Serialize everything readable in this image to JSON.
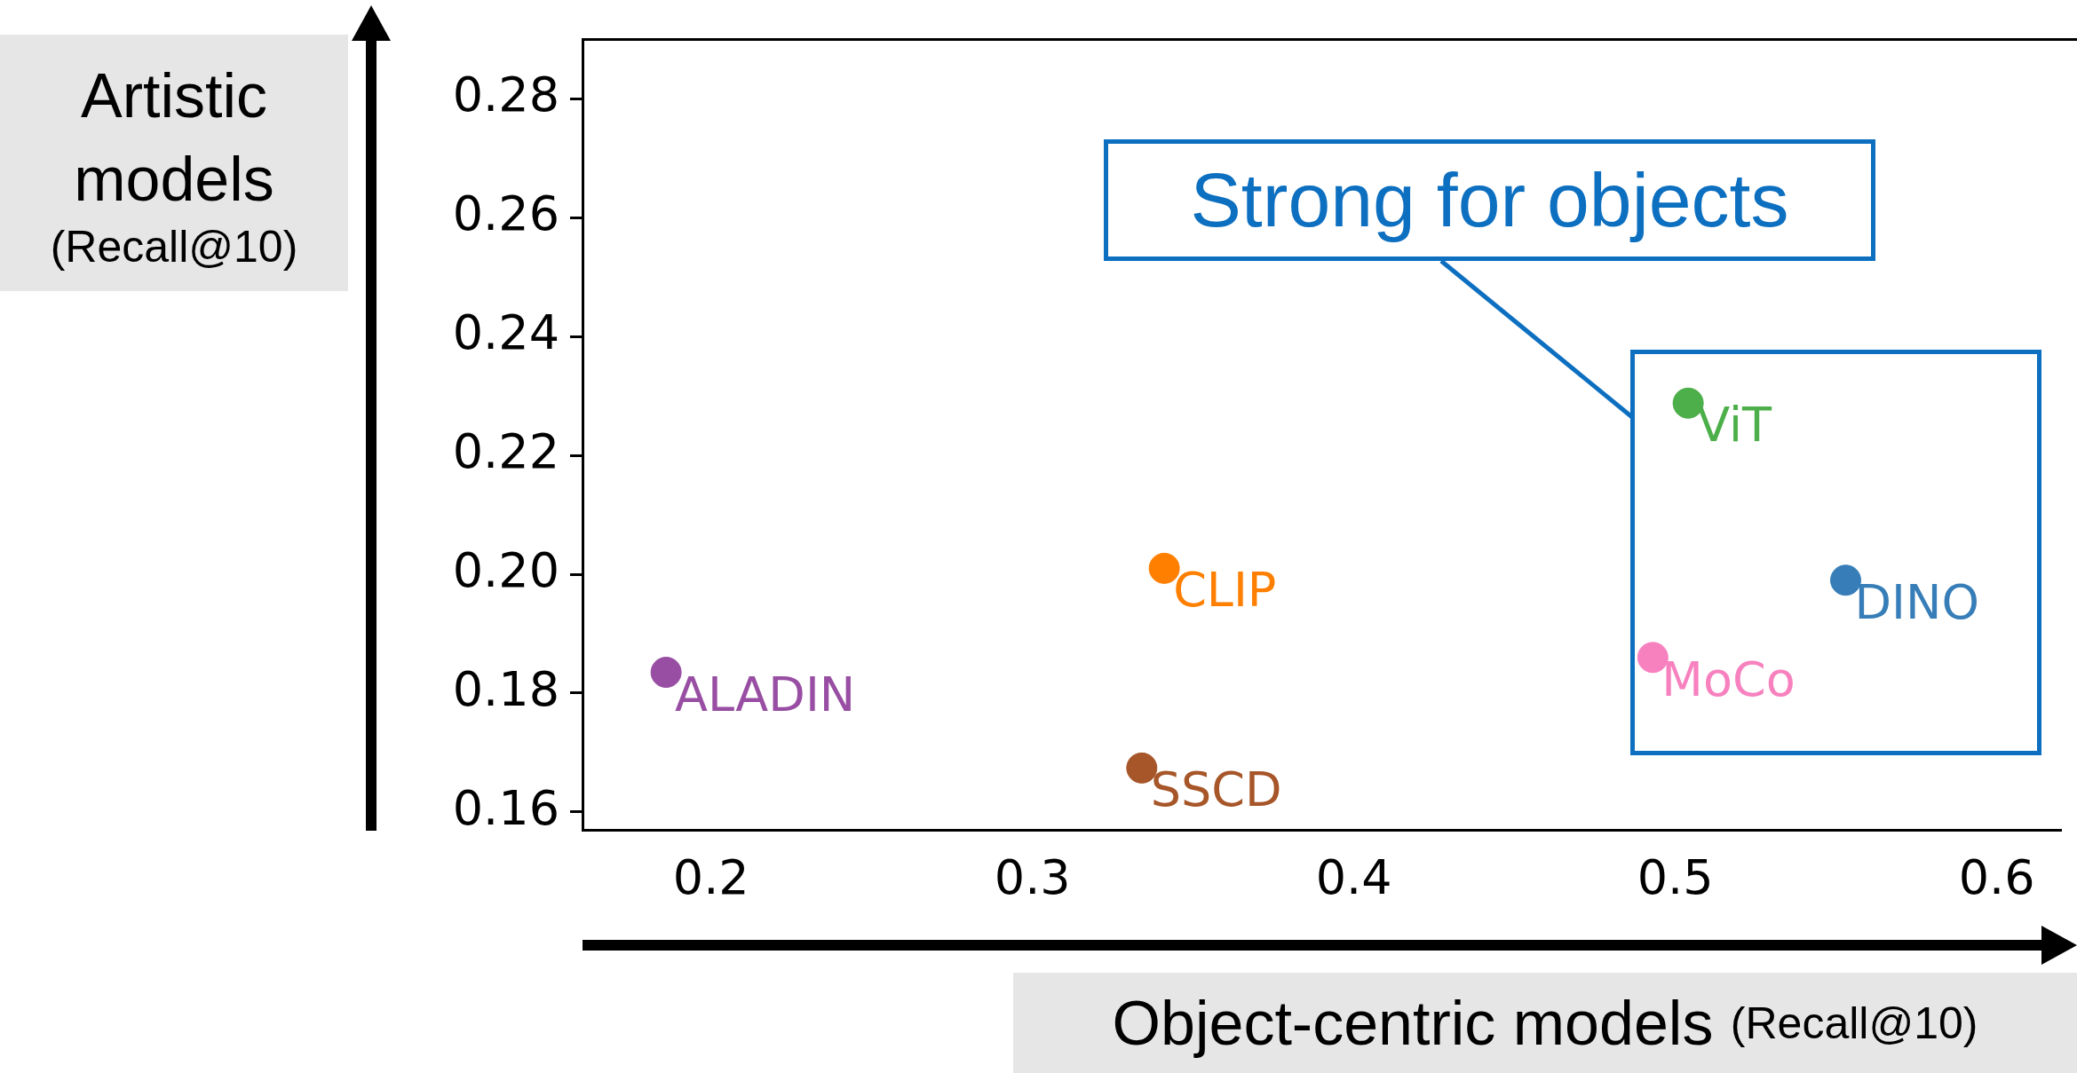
{
  "chart_data": {
    "type": "scatter",
    "xlabel": "Object-centric models (Recall@10)",
    "ylabel": "Artistic models (Recall@10)",
    "series": [
      {
        "name": "ALADIN",
        "color": "#984ea3",
        "x": [
          0.186
        ],
        "values": [
          0.1835
        ]
      },
      {
        "name": "CLIP",
        "color": "#ff7f00",
        "x": [
          0.341
        ],
        "values": [
          0.201
        ]
      },
      {
        "name": "SSCD",
        "color": "#a65628",
        "x": [
          0.334
        ],
        "values": [
          0.1674
        ]
      },
      {
        "name": "ViT",
        "color": "#4daf4a",
        "x": [
          0.504
        ],
        "values": [
          0.2288
        ]
      },
      {
        "name": "DINO",
        "color": "#377eb8",
        "x": [
          0.553
        ],
        "values": [
          0.199
        ]
      },
      {
        "name": "MoCo",
        "color": "#f781bf",
        "x": [
          0.493
        ],
        "values": [
          0.186
        ]
      }
    ],
    "xlim": [
      0.16,
      0.62
    ],
    "xticks": [
      0.2,
      0.3,
      0.4,
      0.5,
      0.6
    ],
    "ylim": [
      0.157,
      0.29
    ],
    "yticks": [
      0.16,
      0.18,
      {
        "value": 0.2,
        "label": "0.20"
      },
      0.22,
      0.24,
      0.26,
      0.28
    ],
    "grid": false,
    "legend": false,
    "marker": "circle",
    "annotations": [
      "Strong for objects"
    ]
  }
}
